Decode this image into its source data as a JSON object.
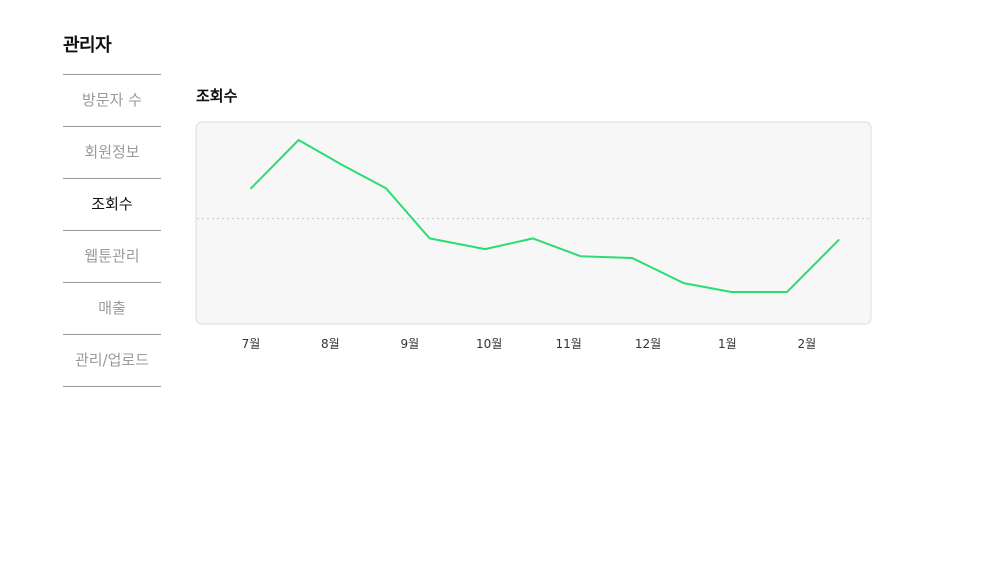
{
  "sidebar": {
    "title": "관리자",
    "items": [
      {
        "label": "방문자 수",
        "active": false
      },
      {
        "label": "회원정보",
        "active": false
      },
      {
        "label": "조회수",
        "active": true
      },
      {
        "label": "웹툰관리",
        "active": false
      },
      {
        "label": "매출",
        "active": false
      },
      {
        "label": "관리/업로드",
        "active": false
      }
    ]
  },
  "main": {
    "section_title": "조회수"
  },
  "colors": {
    "line": "#2bdc72",
    "panel_bg": "#f7f7f7",
    "panel_border": "#dcdcdc",
    "reference_line": "#c8c8c8"
  },
  "chart_data": {
    "type": "line",
    "title": "조회수",
    "xlabel": "",
    "ylabel": "",
    "x_tick_labels": [
      "7월",
      "8월",
      "9월",
      "10월",
      "11월",
      "12월",
      "1월",
      "2월"
    ],
    "x": [
      0,
      0.6,
      1.15,
      1.7,
      2.25,
      2.95,
      3.55,
      4.15,
      4.8,
      5.45,
      6.05,
      6.75,
      7.4
    ],
    "values": [
      73,
      100,
      86,
      73,
      45,
      39,
      45,
      35,
      34,
      20,
      15,
      15,
      44
    ],
    "reference_value": 56,
    "ylim": [
      -30,
      110
    ],
    "grid": false,
    "legend": "none"
  }
}
